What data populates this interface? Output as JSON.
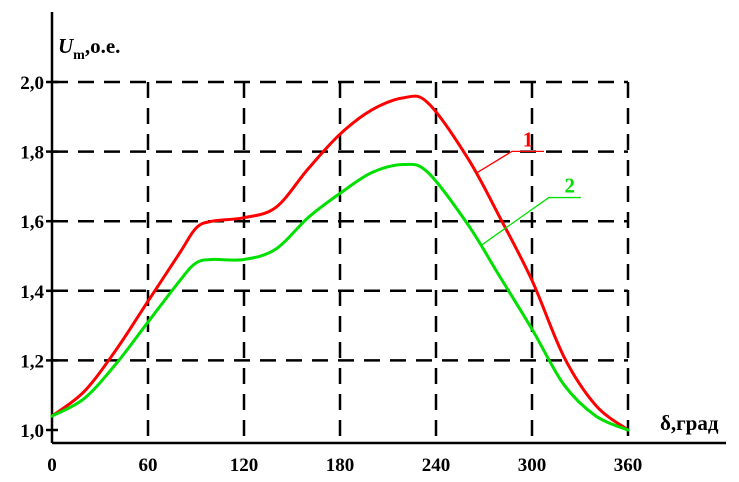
{
  "chart_data": {
    "type": "line",
    "ylabel_main": "U",
    "ylabel_sub": "m",
    "ylabel_rest": ",о.е.",
    "xlabel": "δ,град",
    "xlim": [
      0,
      360
    ],
    "ylim": [
      1.0,
      2.0
    ],
    "grid": true,
    "x_ticks": [
      "0",
      "60",
      "120",
      "180",
      "240",
      "300",
      "360"
    ],
    "y_ticks": [
      "1,0",
      "1,2",
      "1,4",
      "1,6",
      "1,8",
      "2,0"
    ],
    "series": [
      {
        "name": "1",
        "color": "#ff0000",
        "x": [
          0,
          20,
          40,
          60,
          80,
          90,
          100,
          120,
          140,
          160,
          180,
          200,
          220,
          235,
          260,
          280,
          300,
          320,
          340,
          360
        ],
        "y": [
          1.04,
          1.11,
          1.23,
          1.37,
          1.51,
          1.58,
          1.6,
          1.61,
          1.64,
          1.75,
          1.85,
          1.92,
          1.955,
          1.94,
          1.78,
          1.61,
          1.43,
          1.21,
          1.07,
          1.0
        ]
      },
      {
        "name": "2",
        "color": "#00e000",
        "x": [
          0,
          20,
          40,
          60,
          80,
          90,
          100,
          120,
          140,
          160,
          180,
          200,
          220,
          235,
          260,
          280,
          300,
          320,
          340,
          360
        ],
        "y": [
          1.04,
          1.09,
          1.19,
          1.31,
          1.43,
          1.48,
          1.49,
          1.49,
          1.52,
          1.61,
          1.68,
          1.74,
          1.763,
          1.74,
          1.59,
          1.44,
          1.29,
          1.13,
          1.04,
          1.0
        ]
      }
    ]
  }
}
